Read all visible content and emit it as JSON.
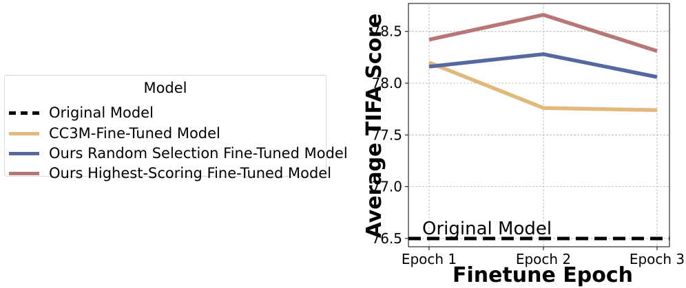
{
  "legend": {
    "title": "Model",
    "items": [
      {
        "label": "Original Model",
        "color": "#000000",
        "style": "dashed"
      },
      {
        "label": "CC3M-Fine-Tuned Model",
        "color": "#e3b87d",
        "style": "solid"
      },
      {
        "label": "Ours Random Selection Fine-Tuned Model",
        "color": "#5668a0",
        "style": "solid"
      },
      {
        "label": "Ours Highest-Scoring Fine-Tuned Model",
        "color": "#b77777",
        "style": "solid"
      }
    ]
  },
  "chart_data": {
    "type": "line",
    "x": [
      "Epoch 1",
      "Epoch 2",
      "Epoch 3"
    ],
    "xlabel": "Finetune Epoch",
    "ylabel": "Average TIFA Score",
    "ylim": [
      76.42,
      78.77
    ],
    "yticks": [
      76.5,
      77.0,
      77.5,
      78.0,
      78.5
    ],
    "ytick_labels": [
      "76.5",
      "77.0",
      "77.5",
      "78.0",
      "78.5"
    ],
    "grid": true,
    "legend_position": "outside-left",
    "series": [
      {
        "name": "CC3M-Fine-Tuned Model",
        "values": [
          78.2,
          77.76,
          77.74
        ],
        "color": "#e3b87d"
      },
      {
        "name": "Ours Random Selection Fine-Tuned Model",
        "values": [
          78.16,
          78.28,
          78.06
        ],
        "color": "#5668a0"
      },
      {
        "name": "Ours Highest-Scoring Fine-Tuned Model",
        "values": [
          78.42,
          78.66,
          78.31
        ],
        "color": "#b77777"
      }
    ],
    "reference_line": {
      "name": "Original Model",
      "value": 76.5,
      "color": "#000000",
      "annotation": "Original Model"
    }
  }
}
